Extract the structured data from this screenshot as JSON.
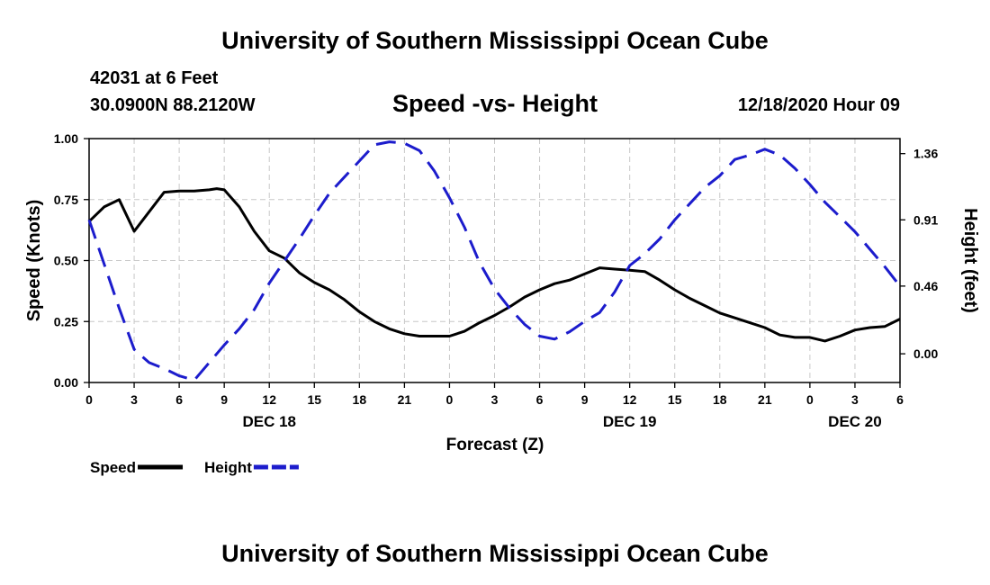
{
  "header": {
    "title": "University of Southern Mississippi Ocean Cube",
    "station": "42031 at 6 Feet",
    "coords": "30.0900N 88.2120W",
    "subtitle": "Speed -vs- Height",
    "datetime": "12/18/2020 Hour 09"
  },
  "footer": {
    "title": "University of Southern Mississippi Ocean Cube"
  },
  "chart_data": {
    "type": "line",
    "title": "Speed -vs- Height",
    "xlabel": "Forecast (Z)",
    "ylabel": "Speed (Knots)",
    "y2label": "Height (feet)",
    "grid": true,
    "x_range": [
      0,
      54
    ],
    "ylim": [
      0,
      1.0
    ],
    "y2lim": [
      -0.195,
      1.462
    ],
    "x_ticks": [
      0,
      3,
      6,
      9,
      12,
      15,
      18,
      21,
      24,
      27,
      30,
      33,
      36,
      39,
      42,
      45,
      48,
      51,
      54
    ],
    "x_tick_labels": [
      "0",
      "3",
      "6",
      "9",
      "12",
      "15",
      "18",
      "21",
      "0",
      "3",
      "6",
      "9",
      "12",
      "15",
      "18",
      "21",
      "0",
      "3",
      "6"
    ],
    "date_labels": [
      {
        "x": 12,
        "label": "DEC 18"
      },
      {
        "x": 36,
        "label": "DEC 19"
      },
      {
        "x": 51,
        "label": "DEC 20"
      }
    ],
    "y_ticks": [
      0,
      0.25,
      0.5,
      0.75,
      1.0
    ],
    "y_tick_labels": [
      "0.00",
      "0.25",
      "0.50",
      "0.75",
      "1.00"
    ],
    "y2_ticks": [
      0,
      0.46,
      0.91,
      1.36
    ],
    "y2_tick_labels": [
      "0.00",
      "0.46",
      "0.91",
      "1.36"
    ],
    "series": [
      {
        "name": "Speed",
        "axis": "left",
        "color": "#000000",
        "dash": "solid",
        "x": [
          0,
          1,
          2,
          3,
          4,
          5,
          6,
          7,
          8,
          8.5,
          9,
          10,
          11,
          12,
          13,
          14,
          15,
          16,
          17,
          18,
          19,
          20,
          21,
          22,
          23,
          24,
          25,
          26,
          27,
          28,
          29,
          30,
          31,
          32,
          33,
          34,
          35,
          36,
          37,
          38,
          39,
          40,
          41,
          42,
          43,
          44,
          45,
          46,
          47,
          48,
          49,
          50,
          51,
          52,
          53,
          54
        ],
        "values": [
          0.66,
          0.72,
          0.75,
          0.62,
          0.7,
          0.78,
          0.785,
          0.785,
          0.79,
          0.795,
          0.79,
          0.72,
          0.62,
          0.54,
          0.51,
          0.45,
          0.41,
          0.38,
          0.34,
          0.29,
          0.25,
          0.22,
          0.2,
          0.19,
          0.19,
          0.19,
          0.21,
          0.245,
          0.275,
          0.31,
          0.35,
          0.38,
          0.405,
          0.42,
          0.445,
          0.47,
          0.465,
          0.46,
          0.455,
          0.42,
          0.38,
          0.345,
          0.315,
          0.285,
          0.265,
          0.245,
          0.225,
          0.195,
          0.185,
          0.185,
          0.17,
          0.19,
          0.215,
          0.225,
          0.23,
          0.26
        ]
      },
      {
        "name": "Height",
        "axis": "right",
        "color": "#1c1ccc",
        "dash": "dashed",
        "x": [
          0,
          1,
          2,
          3,
          4,
          5,
          6,
          7,
          8,
          9,
          10,
          11,
          12,
          13,
          14,
          15,
          16,
          17,
          18,
          19,
          20,
          21,
          22,
          23,
          24,
          25,
          26,
          27,
          28,
          29,
          30,
          31,
          32,
          33,
          34,
          35,
          36,
          37,
          38,
          39,
          40,
          41,
          42,
          43,
          44,
          45,
          46,
          47,
          48,
          49,
          50,
          51,
          52,
          53,
          54
        ],
        "values": [
          0.91,
          0.61,
          0.31,
          0.03,
          -0.06,
          -0.1,
          -0.15,
          -0.18,
          -0.06,
          0.06,
          0.17,
          0.3,
          0.48,
          0.63,
          0.78,
          0.94,
          1.09,
          1.2,
          1.31,
          1.42,
          1.44,
          1.43,
          1.38,
          1.24,
          1.06,
          0.86,
          0.62,
          0.44,
          0.31,
          0.2,
          0.12,
          0.1,
          0.15,
          0.22,
          0.28,
          0.42,
          0.6,
          0.68,
          0.78,
          0.91,
          1.02,
          1.13,
          1.21,
          1.32,
          1.35,
          1.39,
          1.35,
          1.26,
          1.15,
          1.03,
          0.93,
          0.83,
          0.71,
          0.59,
          0.46
        ]
      }
    ],
    "legend": [
      {
        "label": "Speed",
        "color": "#000000",
        "dash": "solid"
      },
      {
        "label": "Height",
        "color": "#1c1ccc",
        "dash": "dashed"
      }
    ]
  }
}
